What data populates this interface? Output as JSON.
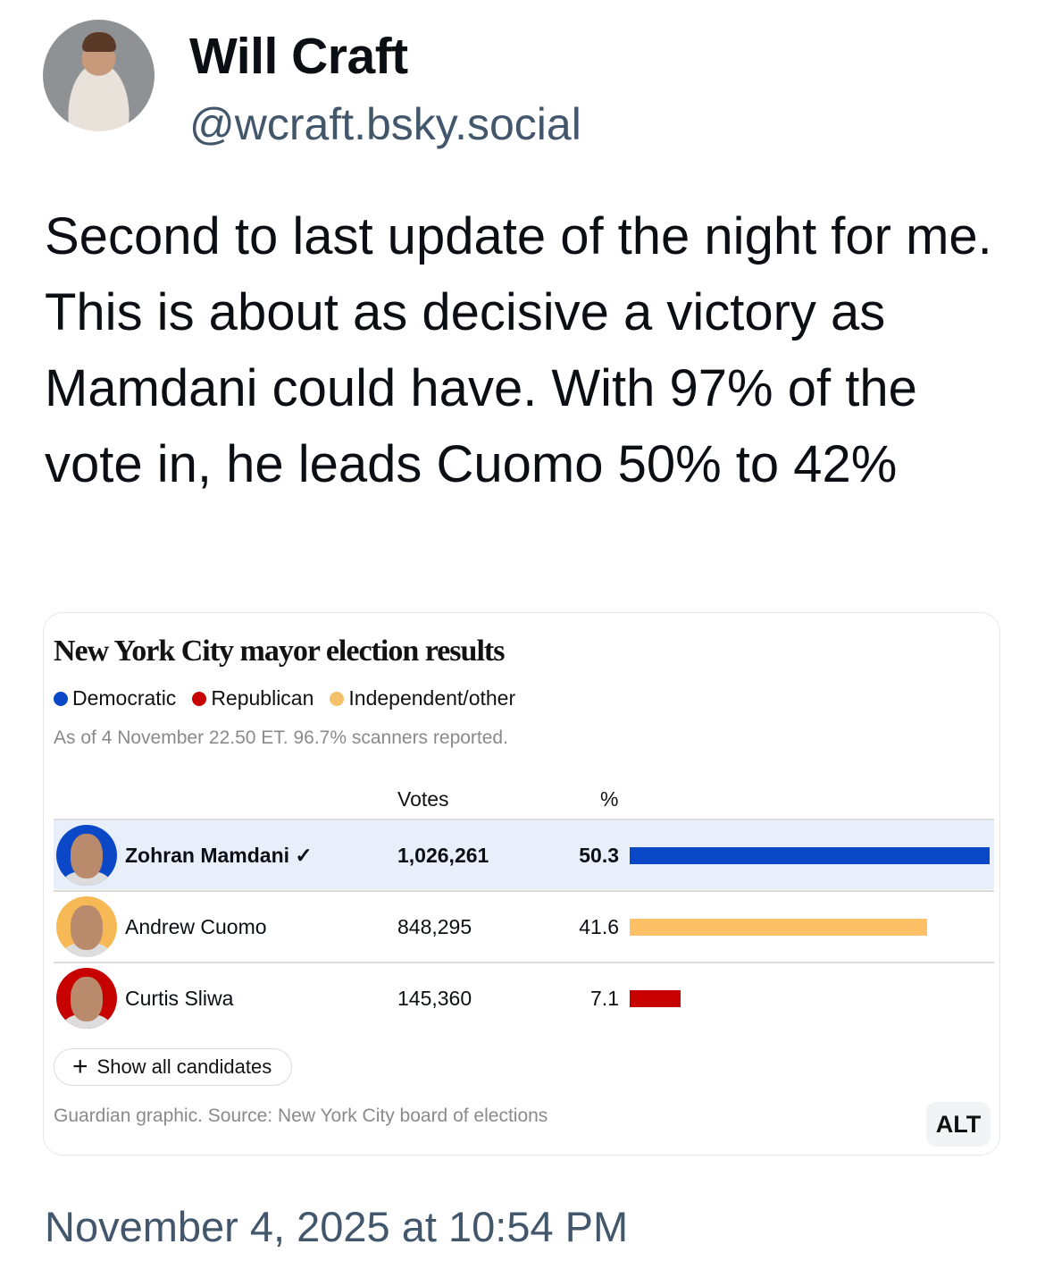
{
  "author": {
    "name": "Will Craft",
    "handle": "@wcraft.bsky.social"
  },
  "post_text": "Second to last update of the night for me. This is about as decisive a victory as Mamdani could have. With 97% of the vote in, he leads Cuomo 50% to 42%",
  "card": {
    "title": "New York City mayor election results",
    "legend": [
      {
        "label": "Democratic",
        "color": "#0a48c8"
      },
      {
        "label": "Republican",
        "color": "#c70000"
      },
      {
        "label": "Independent/other",
        "color": "#f5c06a"
      }
    ],
    "as_of": "As of 4 November 22.50 ET. 96.7% scanners reported.",
    "col_votes": "Votes",
    "col_pct": "%",
    "rows": [
      {
        "name": "Zohran Mamdani",
        "check": "✓",
        "votes": "1,026,261",
        "pct": "50.3",
        "pct_value": 50.3,
        "color": "#0a48c8",
        "ring": "#0a48c8",
        "winner": true
      },
      {
        "name": "Andrew Cuomo",
        "check": "",
        "votes": "848,295",
        "pct": "41.6",
        "pct_value": 41.6,
        "color": "#fdc066",
        "ring": "#f7b955",
        "winner": false
      },
      {
        "name": "Curtis Sliwa",
        "check": "",
        "votes": "145,360",
        "pct": "7.1",
        "pct_value": 7.1,
        "color": "#c70000",
        "ring": "#c70000",
        "winner": false
      }
    ],
    "show_all_label": "Show all candidates",
    "source": "Guardian graphic. Source: New York City board of elections",
    "alt_label": "ALT"
  },
  "timestamp": "November 4, 2025 at 10:54 PM"
}
